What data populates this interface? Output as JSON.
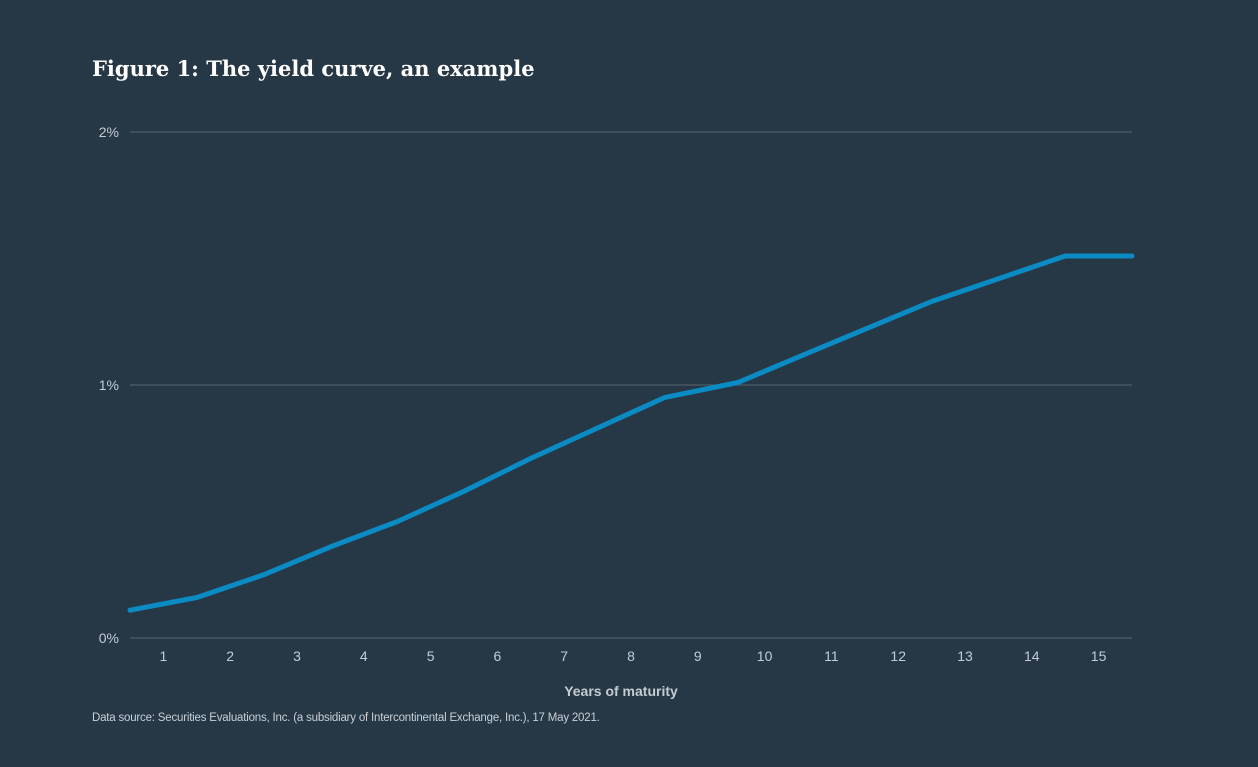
{
  "figure": {
    "title": "Figure 1: The yield curve, an example",
    "source": "Data source: Securities Evaluations, Inc. (a subsidiary of Intercontinental Exchange, Inc.), 17 May 2021."
  },
  "chart_data": {
    "type": "line",
    "title": "Figure 1: The yield curve, an example",
    "xlabel": "Years of maturity",
    "ylabel": "",
    "x": [
      0.5,
      1.5,
      2.5,
      3.5,
      4.5,
      5.5,
      6.5,
      7.5,
      8.5,
      9.6,
      10.5,
      11.5,
      12.5,
      13.5,
      14.5,
      15.5
    ],
    "series": [
      {
        "values": [
          0.11,
          0.16,
          0.25,
          0.36,
          0.46,
          0.58,
          0.71,
          0.83,
          0.95,
          1.01,
          1.11,
          1.22,
          1.33,
          1.42,
          1.51,
          1.51
        ]
      }
    ],
    "xticks": [
      1,
      2,
      3,
      4,
      5,
      6,
      7,
      8,
      9,
      10,
      11,
      12,
      13,
      14,
      15
    ],
    "yticks": [
      {
        "value": 0,
        "label": "0%"
      },
      {
        "value": 1,
        "label": "1%"
      },
      {
        "value": 2,
        "label": "2%"
      }
    ],
    "xlim": [
      0.5,
      15.5
    ],
    "ylim": [
      0,
      2
    ],
    "grid": true,
    "legend": "none",
    "colors": {
      "background": "#263746",
      "line": "#0a8bc4",
      "grid": "#56646f",
      "text": "#c4ccd3"
    }
  }
}
